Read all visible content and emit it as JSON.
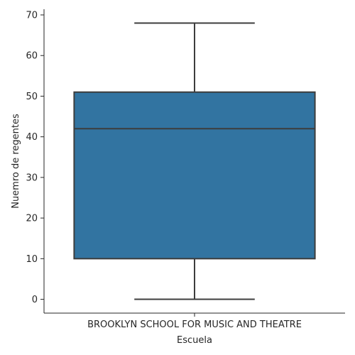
{
  "chart_data": {
    "type": "box",
    "title": "",
    "xlabel": "Escuela",
    "ylabel": "Nuemro de regentes",
    "categories": [
      "BROOKLYN SCHOOL FOR MUSIC AND THEATRE"
    ],
    "boxes": [
      {
        "category": "BROOKLYN SCHOOL FOR MUSIC AND THEATRE",
        "min": 0,
        "q1": 10,
        "median": 42,
        "q3": 51,
        "max": 68
      }
    ],
    "ylim": [
      -3.4,
      71.4
    ],
    "yticks": [
      0,
      10,
      20,
      30,
      40,
      50,
      60,
      70
    ],
    "grid": false,
    "colors": {
      "box": "#3274a1",
      "line": "#3d3d3d",
      "axis": "#262626"
    }
  }
}
